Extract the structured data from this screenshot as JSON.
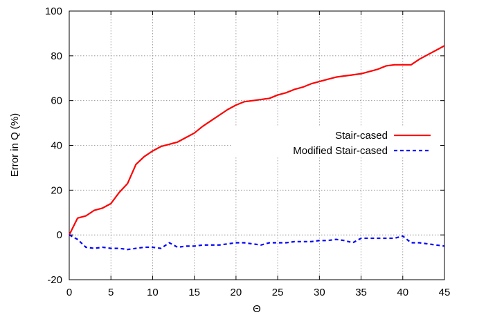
{
  "chart_data": {
    "type": "line",
    "xlabel": "Θ",
    "ylabel": "Error in Q (%)",
    "xlim": [
      0,
      45
    ],
    "ylim": [
      -20,
      100
    ],
    "xticks": [
      0,
      5,
      10,
      15,
      20,
      25,
      30,
      35,
      40,
      45
    ],
    "yticks": [
      -20,
      0,
      20,
      40,
      60,
      80,
      100
    ],
    "x_tick_labels": [
      "0",
      "5",
      "10",
      "15",
      "20",
      "25",
      "30",
      "35",
      "40",
      "45"
    ],
    "y_tick_labels": [
      "-20",
      "0",
      "20",
      "40",
      "60",
      "80",
      "100"
    ],
    "grid": true,
    "legend_position": "center-right",
    "x": [
      0,
      1,
      2,
      3,
      4,
      5,
      6,
      7,
      8,
      9,
      10,
      11,
      12,
      13,
      14,
      15,
      16,
      17,
      18,
      19,
      20,
      21,
      22,
      23,
      24,
      25,
      26,
      27,
      28,
      29,
      30,
      31,
      32,
      33,
      34,
      35,
      36,
      37,
      38,
      39,
      40,
      41,
      42,
      43,
      44,
      45
    ],
    "series": [
      {
        "name": "Stair-cased",
        "color": "#ff0000",
        "style": "solid",
        "values": [
          0,
          7.5,
          8.5,
          11,
          12,
          14,
          19,
          23,
          31.5,
          35,
          37.5,
          39.5,
          40.5,
          41.5,
          43.5,
          45.5,
          48.5,
          51,
          53.5,
          56,
          58,
          59.5,
          60,
          60.5,
          61,
          62.5,
          63.5,
          65,
          66,
          67.5,
          68.5,
          69.5,
          70.5,
          71,
          71.5,
          72,
          73,
          74,
          75.5,
          76,
          76,
          76,
          78.5,
          80.5,
          82.5,
          84.5
        ]
      },
      {
        "name": "Modified Stair-cased",
        "color": "#0000ff",
        "style": "dashed",
        "values": [
          0,
          -2,
          -5.5,
          -6,
          -5.5,
          -6,
          -6,
          -6.5,
          -6,
          -5.5,
          -5.5,
          -6,
          -3.5,
          -5.5,
          -5,
          -5,
          -4.5,
          -4.5,
          -4.5,
          -4,
          -3.5,
          -3.5,
          -4,
          -4.5,
          -3.5,
          -3.5,
          -3.5,
          -3,
          -3,
          -3,
          -2.5,
          -2.5,
          -2,
          -2.5,
          -3.5,
          -1.5,
          -1.5,
          -1.5,
          -1.5,
          -1.5,
          -0.5,
          -3.5,
          -3.5,
          -4,
          -4.5,
          -5
        ]
      }
    ]
  }
}
